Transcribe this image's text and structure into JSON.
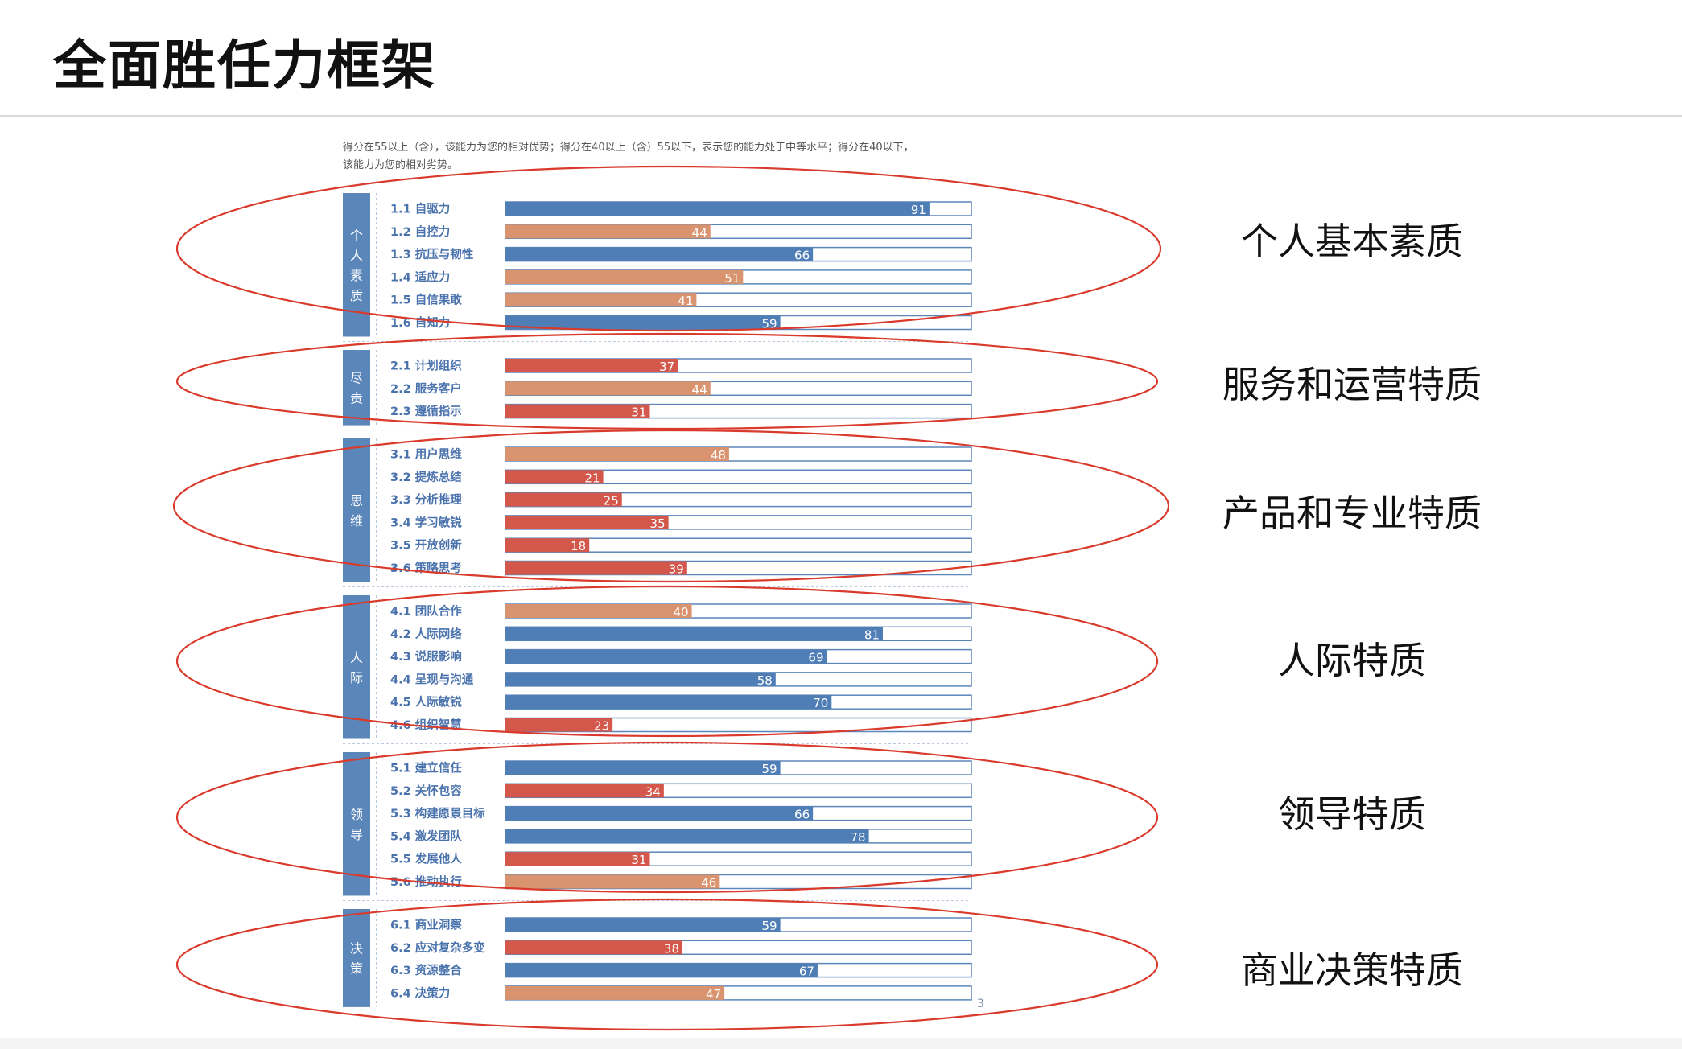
{
  "title": "全面胜任力框架",
  "note": {
    "line1": "得分在55以上（含），该能力为您的相对优势；得分在40以上（含）55以下，表示您的能力处于中等水平；得分在40以下，",
    "line2": "该能力为您的相对劣势。"
  },
  "colors": {
    "strength": "#4f7db5",
    "medium": "#d9936e",
    "weakness": "#d4574b",
    "ellipse": "#d93a2b",
    "sidebar": "#5b86ba",
    "label": "#4a73ad"
  },
  "page_number": "3",
  "chart_data": {
    "type": "bar",
    "orientation": "horizontal",
    "xlim": [
      0,
      100
    ],
    "groups": [
      {
        "name": "个人素质",
        "side_label": "个人基本素质",
        "items": [
          {
            "code": "1.1",
            "label": "自驱力",
            "value": 91
          },
          {
            "code": "1.2",
            "label": "自控力",
            "value": 44
          },
          {
            "code": "1.3",
            "label": "抗压与韧性",
            "value": 66
          },
          {
            "code": "1.4",
            "label": "适应力",
            "value": 51
          },
          {
            "code": "1.5",
            "label": "自信果敢",
            "value": 41
          },
          {
            "code": "1.6",
            "label": "自知力",
            "value": 59
          }
        ]
      },
      {
        "name": "尽责",
        "side_label": "服务和运营特质",
        "items": [
          {
            "code": "2.1",
            "label": "计划组织",
            "value": 37
          },
          {
            "code": "2.2",
            "label": "服务客户",
            "value": 44
          },
          {
            "code": "2.3",
            "label": "遵循指示",
            "value": 31
          }
        ]
      },
      {
        "name": "思维",
        "side_label": "产品和专业特质",
        "items": [
          {
            "code": "3.1",
            "label": "用户思维",
            "value": 48
          },
          {
            "code": "3.2",
            "label": "提炼总结",
            "value": 21
          },
          {
            "code": "3.3",
            "label": "分析推理",
            "value": 25
          },
          {
            "code": "3.4",
            "label": "学习敏锐",
            "value": 35
          },
          {
            "code": "3.5",
            "label": "开放创新",
            "value": 18
          },
          {
            "code": "3.6",
            "label": "策略思考",
            "value": 39
          }
        ]
      },
      {
        "name": "人际",
        "side_label": "人际特质",
        "items": [
          {
            "code": "4.1",
            "label": "团队合作",
            "value": 40
          },
          {
            "code": "4.2",
            "label": "人际网络",
            "value": 81
          },
          {
            "code": "4.3",
            "label": "说服影响",
            "value": 69
          },
          {
            "code": "4.4",
            "label": "呈现与沟通",
            "value": 58
          },
          {
            "code": "4.5",
            "label": "人际敏锐",
            "value": 70
          },
          {
            "code": "4.6",
            "label": "组织智慧",
            "value": 23
          }
        ]
      },
      {
        "name": "领导",
        "side_label": "领导特质",
        "items": [
          {
            "code": "5.1",
            "label": "建立信任",
            "value": 59
          },
          {
            "code": "5.2",
            "label": "关怀包容",
            "value": 34
          },
          {
            "code": "5.3",
            "label": "构建愿景目标",
            "value": 66
          },
          {
            "code": "5.4",
            "label": "激发团队",
            "value": 78
          },
          {
            "code": "5.5",
            "label": "发展他人",
            "value": 31
          },
          {
            "code": "5.6",
            "label": "推动执行",
            "value": 46
          }
        ]
      },
      {
        "name": "决策",
        "side_label": "商业决策特质",
        "items": [
          {
            "code": "6.1",
            "label": "商业洞察",
            "value": 59
          },
          {
            "code": "6.2",
            "label": "应对复杂多变",
            "value": 38
          },
          {
            "code": "6.3",
            "label": "资源整合",
            "value": 67
          },
          {
            "code": "6.4",
            "label": "决策力",
            "value": 47
          }
        ]
      }
    ]
  }
}
